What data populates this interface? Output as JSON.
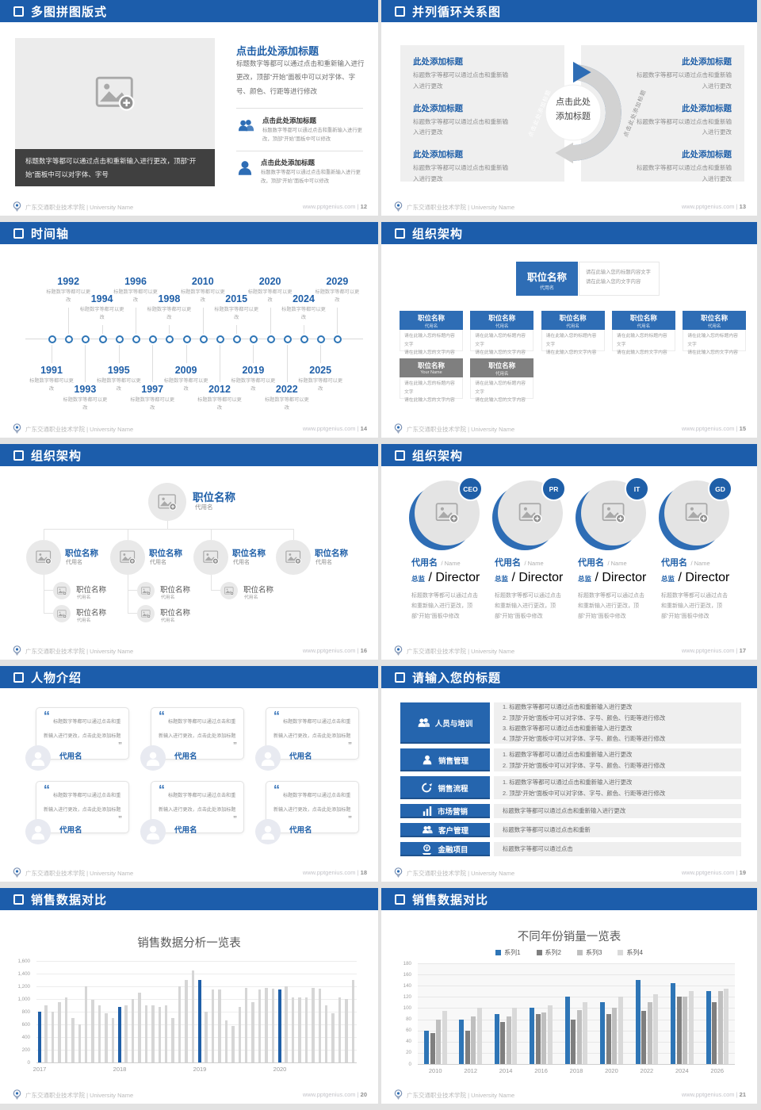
{
  "colors": {
    "header": "#1c5dab",
    "accent": "#1f5fa8",
    "accent2": "#2e6db5",
    "panel": "#efefef",
    "dark_caption": "#404040",
    "gray_box": "#7f7f7f"
  },
  "footer": {
    "school": "广东交通职业技术学院 | University Name",
    "site": "www.pptgenius.com",
    "sep": "|"
  },
  "slides": [
    {
      "page": "12",
      "title": "多图拼图版式",
      "caption": "标题数字等都可以通过点击和重新输入进行更改，顶部“开始”面板中可以对字体、字号",
      "heading": "点击此处添加标题",
      "body": "标题数字等都可以通过点击和重新输入进行更改，顶部“开始”面板中可以对字体、字号、颜色、行距等进行修改",
      "features": [
        {
          "title": "点击此处添加标题",
          "text": "标题数字等都可以通过点击和重新输入进行更改，顶部“开始”面板中可以修改"
        },
        {
          "title": "点击此处添加标题",
          "text": "标题数字等都可以通过点击和重新输入进行更改，顶部“开始”面板中可以修改"
        }
      ]
    },
    {
      "page": "13",
      "title": "并列循环关系图",
      "center_l1": "点击此处",
      "center_l2": "添加标题",
      "arc_label": "点击此处添加标题",
      "items_l": [
        {
          "t": "此处添加标题",
          "d": "标题数字等都可以通过点击和重新输入进行更改"
        },
        {
          "t": "此处添加标题",
          "d": "标题数字等都可以通过点击和重新输入进行更改"
        },
        {
          "t": "此处添加标题",
          "d": "标题数字等都可以通过点击和重新输入进行更改"
        }
      ],
      "items_r": [
        {
          "t": "此处添加标题",
          "d": "标题数字等都可以通过点击和重新输入进行更改"
        },
        {
          "t": "此处添加标题",
          "d": "标题数字等都可以通过点击和重新输入进行更改"
        },
        {
          "t": "此处添加标题",
          "d": "标题数字等都可以通过点击和重新输入进行更改"
        }
      ]
    },
    {
      "page": "14",
      "title": "时间轴",
      "note": "标题数字等都可以更改",
      "items": [
        {
          "year": "1991",
          "pos": "b1"
        },
        {
          "year": "1992",
          "pos": "t1"
        },
        {
          "year": "1993",
          "pos": "b2"
        },
        {
          "year": "1994",
          "pos": "t2"
        },
        {
          "year": "1995",
          "pos": "b1"
        },
        {
          "year": "1996",
          "pos": "t1"
        },
        {
          "year": "1997",
          "pos": "b2"
        },
        {
          "year": "1998",
          "pos": "t2"
        },
        {
          "year": "2009",
          "pos": "b1"
        },
        {
          "year": "2010",
          "pos": "t1"
        },
        {
          "year": "2012",
          "pos": "b2"
        },
        {
          "year": "2015",
          "pos": "t2"
        },
        {
          "year": "2019",
          "pos": "b1"
        },
        {
          "year": "2020",
          "pos": "t1"
        },
        {
          "year": "2022",
          "pos": "b2"
        },
        {
          "year": "2024",
          "pos": "t2"
        },
        {
          "year": "2025",
          "pos": "b1"
        },
        {
          "year": "2029",
          "pos": "t1"
        }
      ]
    },
    {
      "page": "15",
      "title": "组织架构",
      "root": {
        "t": "职位名称",
        "s": "代用名"
      },
      "note1": "请在此输入您的标题内容文字",
      "note2": "请在此输入您的文字内容",
      "row1": [
        {
          "t": "职位名称",
          "s": "代用名"
        },
        {
          "t": "职位名称",
          "s": "代用名"
        },
        {
          "t": "职位名称",
          "s": "代用名"
        },
        {
          "t": "职位名称",
          "s": "代用名"
        },
        {
          "t": "职位名称",
          "s": "代用名"
        }
      ],
      "row2": [
        {
          "t": "职位名称",
          "s": "Your Name"
        },
        {
          "t": "职位名称",
          "s": "代用名"
        }
      ]
    },
    {
      "page": "16",
      "title": "组织架构",
      "root": {
        "t": "职位名称",
        "s": "代用名"
      },
      "cols": [
        {
          "t": "职位名称",
          "s": "代用名",
          "children": [
            {
              "t": "职位名称",
              "s": "代用名"
            },
            {
              "t": "职位名称",
              "s": "代用名"
            }
          ]
        },
        {
          "t": "职位名称",
          "s": "代用名",
          "children": [
            {
              "t": "职位名称",
              "s": "代用名"
            },
            {
              "t": "职位名称",
              "s": "代用名"
            }
          ]
        },
        {
          "t": "职位名称",
          "s": "代用名",
          "children": [
            {
              "t": "职位名称",
              "s": "代用名"
            }
          ]
        },
        {
          "t": "职位名称",
          "s": "代用名",
          "children": []
        }
      ]
    },
    {
      "page": "17",
      "title": "组织架构",
      "persons": [
        {
          "badge": "CEO",
          "name": "代用名",
          "name_en": "/ Name",
          "role": "总监",
          "role_en": "/ Director",
          "text": "标题数字等都可以通过点击和重新输入进行更改，顶部“开始”面板中修改"
        },
        {
          "badge": "PR",
          "name": "代用名",
          "name_en": "/ Name",
          "role": "总监",
          "role_en": "/ Director",
          "text": "标题数字等都可以通过点击和重新输入进行更改，顶部“开始”面板中修改"
        },
        {
          "badge": "IT",
          "name": "代用名",
          "name_en": "/ Name",
          "role": "总监",
          "role_en": "/ Director",
          "text": "标题数字等都可以通过点击和重新输入进行更改，顶部“开始”面板中修改"
        },
        {
          "badge": "GD",
          "name": "代用名",
          "name_en": "/ Name",
          "role": "总监",
          "role_en": "/ Director",
          "text": "标题数字等都可以通过点击和重新输入进行更改，顶部“开始”面板中修改"
        }
      ]
    },
    {
      "page": "18",
      "title": "人物介绍",
      "quote_open": "“",
      "quote_close": "”",
      "cards": [
        {
          "text": "标题数字等都可以通过点击和重新输入进行更改，点击此处添加标题",
          "name": "代用名"
        },
        {
          "text": "标题数字等都可以通过点击和重新输入进行更改，点击此处添加标题",
          "name": "代用名"
        },
        {
          "text": "标题数字等都可以通过点击和重新输入进行更改，点击此处添加标题",
          "name": "代用名"
        },
        {
          "text": "标题数字等都可以通过点击和重新输入进行更改，点击此处添加标题",
          "name": "代用名"
        },
        {
          "text": "标题数字等都可以通过点击和重新输入进行更改，点击此处添加标题",
          "name": "代用名"
        },
        {
          "text": "标题数字等都可以通过点击和重新输入进行更改，点击此处添加标题",
          "name": "代用名"
        }
      ]
    },
    {
      "page": "19",
      "title": "请输入您的标题",
      "rows": [
        {
          "label": "人员与培训",
          "icon": "training-icon",
          "lines": [
            "1.  标题数字等都可以通过点击和重新输入进行更改",
            "2.  顶部“开始”面板中可以对字体、字号、颜色、行距等进行修改",
            "3.  标题数字等都可以通过点击和重新输入进行更改",
            "4.  顶部“开始”面板中可以对字体、字号、颜色、行距等进行修改"
          ]
        },
        {
          "label": "销售管理",
          "icon": "sales-management-icon",
          "lines": [
            "1.  标题数字等都可以通过点击和重新输入进行更改",
            "2.  顶部“开始”面板中可以对字体、字号、颜色、行距等进行修改"
          ]
        },
        {
          "label": "销售流程",
          "icon": "sales-process-icon",
          "lines": [
            "1.  标题数字等都可以通过点击和重新输入进行更改",
            "2.  顶部“开始”面板中可以对字体、字号、颜色、行距等进行修改"
          ]
        },
        {
          "label": "市场营销",
          "icon": "marketing-icon",
          "lines": [
            "标题数字等都可以通过点击和重新输入进行更改"
          ]
        },
        {
          "label": "客户管理",
          "icon": "customer-icon",
          "lines": [
            "标题数字等都可以通过点击和重新"
          ]
        },
        {
          "label": "金融项目",
          "icon": "finance-icon",
          "lines": [
            "标题数字等都可以通过点击"
          ]
        }
      ]
    },
    {
      "page": "20",
      "title": "销售数据对比"
    },
    {
      "page": "21",
      "title": "销售数据对比"
    }
  ],
  "chart_data": [
    {
      "type": "bar",
      "title": "销售数据分析一览表",
      "x_labels": [
        "2017",
        "2018",
        "2019",
        "2020"
      ],
      "group_size": 12,
      "ylim": [
        0,
        1600
      ],
      "ytick_step": 200,
      "grid": true,
      "legend_position": "none",
      "bar_color": "#d6d6d6",
      "highlight_color": "#1f5fa8",
      "values": [
        800,
        900,
        800,
        950,
        1020,
        700,
        600,
        1200,
        990,
        900,
        780,
        700,
        880,
        900,
        1000,
        1100,
        900,
        900,
        880,
        900,
        700,
        1200,
        1300,
        1450,
        1300,
        800,
        1150,
        1150,
        660,
        580,
        870,
        1180,
        950,
        1150,
        1170,
        1160,
        1150,
        1200,
        1020,
        1030,
        1020,
        1170,
        1160,
        900,
        780,
        1020,
        1000,
        1300
      ]
    },
    {
      "type": "bar",
      "title": "不同年份销量一览表",
      "categories": [
        "2010",
        "2012",
        "2014",
        "2016",
        "2018",
        "2020",
        "2022",
        "2024",
        "2026"
      ],
      "ylim": [
        0,
        180
      ],
      "ytick_step": 20,
      "grid": true,
      "legend_position": "top",
      "series": [
        {
          "name": "系列1",
          "color": "#2e75b6",
          "values": [
            60,
            80,
            90,
            100,
            120,
            110,
            150,
            145,
            130
          ]
        },
        {
          "name": "系列2",
          "color": "#7f7f7f",
          "values": [
            55,
            60,
            75,
            90,
            80,
            90,
            95,
            120,
            110
          ]
        },
        {
          "name": "系列3",
          "color": "#bfbfbf",
          "values": [
            80,
            85,
            85,
            92,
            97,
            100,
            110,
            120,
            130
          ]
        },
        {
          "name": "系列4",
          "color": "#d9d9d9",
          "values": [
            95,
            100,
            100,
            105,
            110,
            120,
            125,
            130,
            135
          ]
        }
      ]
    }
  ]
}
